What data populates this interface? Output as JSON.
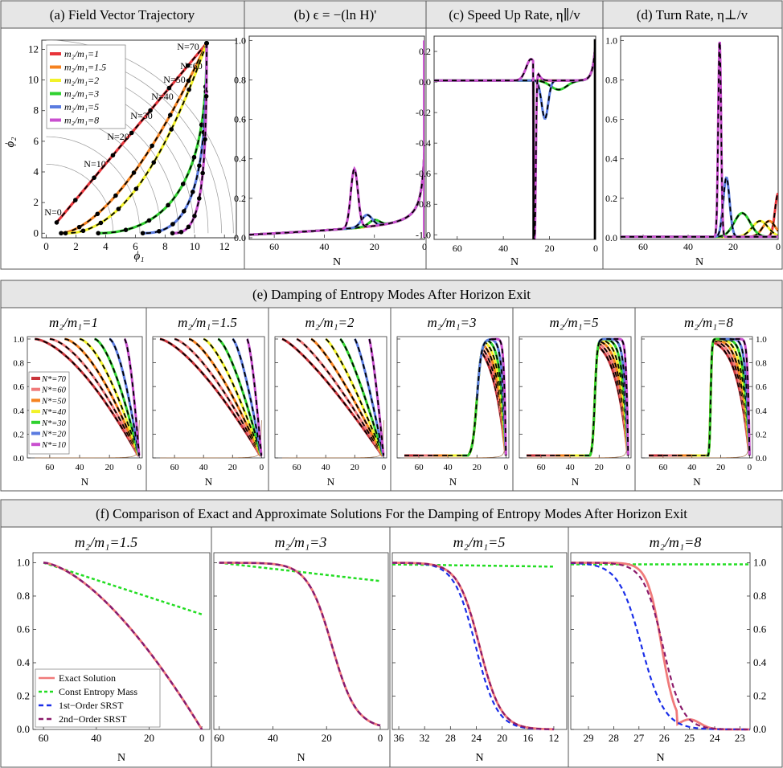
{
  "row1": {
    "panels": [
      {
        "title": "(a)  Field Vector Trajectory",
        "xlabel": "ϕ₁",
        "ylabel": "ϕ₂",
        "xticks": [
          0,
          2,
          4,
          6,
          8,
          10,
          12
        ],
        "yticks": [
          0,
          2,
          4,
          6,
          8,
          10,
          12
        ],
        "legend": [
          "m₂/m₁=1",
          "m₂/m₁=1.5",
          "m₂/m₁=2",
          "m₂/m₁=3",
          "m₂/m₁=5",
          "m₂/m₁=8"
        ],
        "n_labels": [
          "N=0",
          "N=10",
          "N=20",
          "N=30",
          "N=40",
          "N=50",
          "N=60",
          "N=70"
        ]
      },
      {
        "title": "(b)  ϵ = −(ln H)'",
        "xlabel": "N",
        "xticks": [
          60,
          40,
          20,
          0
        ],
        "yticks": [
          0.0,
          0.2,
          0.4,
          0.6,
          0.8,
          1.0
        ]
      },
      {
        "title": "(c)  Speed Up Rate, η∥/v",
        "xlabel": "N",
        "xticks": [
          60,
          40,
          20,
          0
        ],
        "yticks": [
          0.2,
          0.0,
          -0.2,
          -0.4,
          -0.6,
          -0.8,
          -1
        ]
      },
      {
        "title": "(d)  Turn Rate, η⊥/v",
        "xlabel": "N",
        "xticks": [
          60,
          40,
          20,
          0
        ],
        "yticks": [
          0.0,
          0.2,
          0.4,
          0.6,
          0.8,
          1.0
        ]
      }
    ]
  },
  "row2": {
    "title": "(e)  Damping of Entropy Modes After Horizon Exit",
    "panels": [
      "m₂/m₁=1",
      "m₂/m₁=1.5",
      "m₂/m₁=2",
      "m₂/m₁=3",
      "m₂/m₁=5",
      "m₂/m₁=8"
    ],
    "xlabel": "N",
    "xticks": [
      60,
      40,
      20,
      0
    ],
    "yticks": [
      0.0,
      0.2,
      0.4,
      0.6,
      0.8,
      1.0
    ],
    "legend": [
      "N*=70",
      "N*=60",
      "N*=50",
      "N*=40",
      "N*=30",
      "N*=20",
      "N*=10"
    ]
  },
  "row3": {
    "title": "(f) Comparison of Exact and Approximate Solutions For the Damping of Entropy Modes After Horizon Exit",
    "panels": [
      {
        "label": "m₂/m₁=1.5",
        "xticks": [
          60,
          40,
          20,
          0
        ]
      },
      {
        "label": "m₂/m₁=3",
        "xticks": [
          60,
          40,
          20,
          0
        ]
      },
      {
        "label": "m₂/m₁=5",
        "xticks": [
          36,
          32,
          28,
          24,
          20,
          16,
          12
        ]
      },
      {
        "label": "m₂/m₁=8",
        "xticks": [
          29,
          28,
          27,
          26,
          25,
          24,
          23
        ]
      }
    ],
    "xlabel": "N",
    "yticks": [
      0.0,
      0.2,
      0.4,
      0.6,
      0.8,
      1.0
    ],
    "legend": [
      "Exact Solution",
      "Const Entropy Mass",
      "1st−Order SRST",
      "2nd−Order SRST"
    ]
  },
  "colors": {
    "ratio1": "#e8343a",
    "ratio1_5": "#f5821f",
    "ratio2": "#f2f22a",
    "ratio3": "#2fd12f",
    "ratio5": "#5a7be0",
    "ratio8": "#c94fcf",
    "nstar70": "#c9343a",
    "nstar60": "#f07a7a",
    "nstar50": "#f5821f",
    "nstar40": "#f2f22a",
    "nstar30": "#2fd12f",
    "nstar20": "#5a7be0",
    "nstar10": "#c94fcf",
    "exact": "#f07a7a",
    "const": "#22dd22",
    "first": "#1a2ee8",
    "second": "#8a1a6a",
    "header": "#e6e6e6"
  }
}
